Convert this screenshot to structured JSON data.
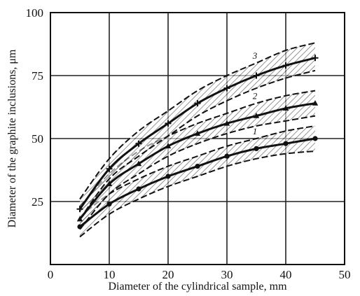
{
  "chart_data": {
    "type": "line",
    "xlabel": "Diameter of the cylindrical sample, mm",
    "ylabel": "Diameter of the graphite inclusions, μm",
    "xlim": [
      0,
      50
    ],
    "ylim": [
      0,
      100
    ],
    "x_ticks": [
      "0",
      "10",
      "20",
      "30",
      "40",
      "50"
    ],
    "y_ticks": [
      "25",
      "50",
      "75",
      "100"
    ],
    "grid": true,
    "series": [
      {
        "name": "1",
        "style": "band",
        "x": [
          5,
          10,
          15,
          20,
          25,
          30,
          35,
          40,
          45
        ],
        "values": [
          15,
          24,
          30,
          35,
          39,
          43,
          46,
          48,
          50
        ],
        "lower": [
          11,
          20,
          26,
          31,
          35,
          39,
          42,
          44,
          45
        ],
        "upper": [
          19,
          28,
          34,
          39,
          43,
          47,
          50,
          53,
          55
        ]
      },
      {
        "name": "2",
        "style": "band",
        "x": [
          5,
          10,
          15,
          20,
          25,
          30,
          35,
          40,
          45
        ],
        "values": [
          18,
          32,
          40,
          47,
          52,
          56,
          59,
          62,
          64
        ],
        "lower": [
          14,
          28,
          36,
          43,
          48,
          52,
          55,
          57,
          59
        ],
        "upper": [
          23,
          36,
          45,
          51,
          56,
          60,
          64,
          67,
          69
        ]
      },
      {
        "name": "3",
        "style": "band",
        "x": [
          5,
          10,
          15,
          20,
          25,
          30,
          35,
          40,
          45
        ],
        "values": [
          22,
          38,
          48,
          56,
          64,
          70,
          75,
          79,
          82
        ],
        "lower": [
          18,
          34,
          43,
          51,
          59,
          65,
          70,
          74,
          77
        ],
        "upper": [
          26,
          42,
          53,
          61,
          69,
          75,
          80,
          85,
          88
        ]
      }
    ]
  },
  "colors": {
    "ink": "#111111",
    "grid": "#222222",
    "background": "#ffffff"
  }
}
